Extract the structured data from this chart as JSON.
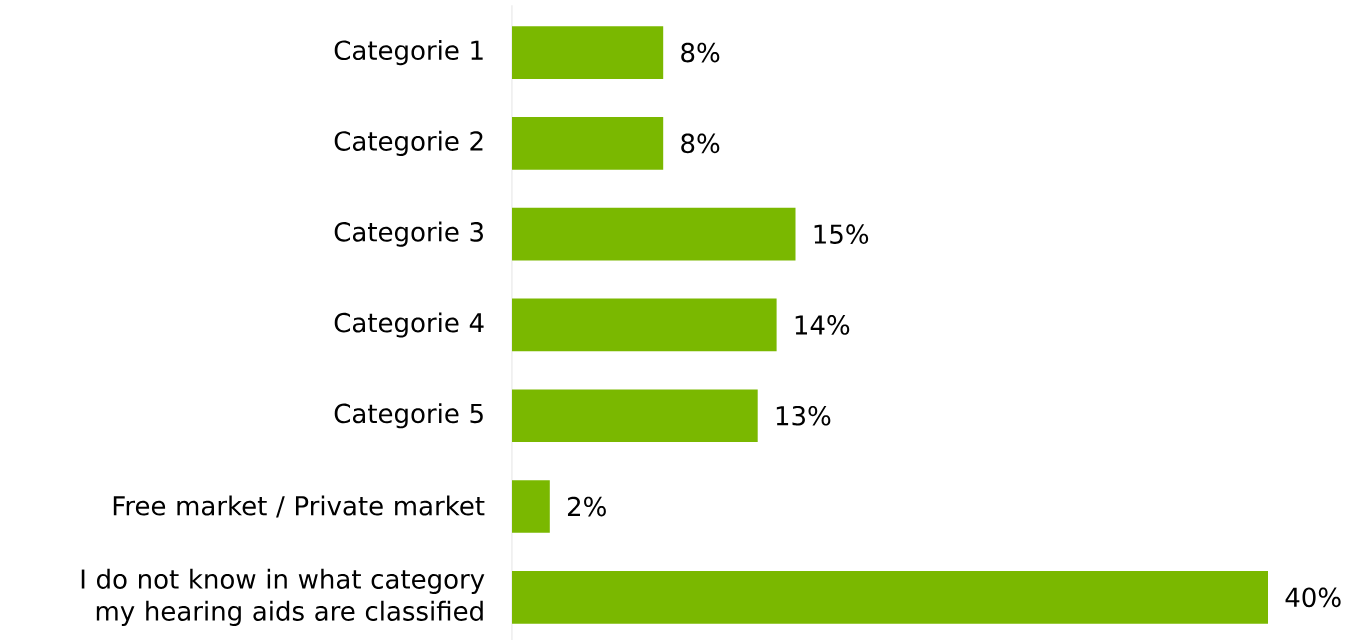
{
  "chart_data": {
    "type": "bar",
    "orientation": "horizontal",
    "categories": [
      "Categorie 1",
      "Categorie 2",
      "Categorie 3",
      "Categorie 4",
      "Categorie 5",
      "Free market / Private market",
      "I do not know in what category my hearing aids are classified"
    ],
    "values": [
      8,
      8,
      15,
      14,
      13,
      2,
      40
    ],
    "value_labels": [
      "8%",
      "8%",
      "15%",
      "14%",
      "13%",
      "2%",
      "40%"
    ],
    "color": "#7ab800"
  }
}
